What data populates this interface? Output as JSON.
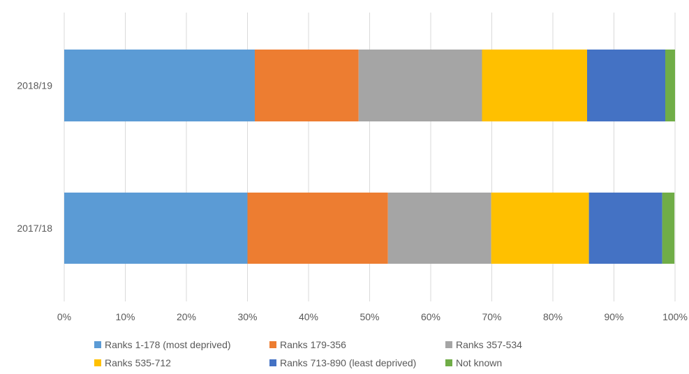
{
  "chart_data": {
    "type": "bar",
    "orientation": "horizontal",
    "stacked": true,
    "percent": true,
    "categories": [
      "2018/19",
      "2017/18"
    ],
    "series": [
      {
        "name": "Ranks 1-178 (most deprived)",
        "color": "#5B9BD5",
        "values": [
          31.2,
          30.0
        ]
      },
      {
        "name": "Ranks 179-356",
        "color": "#ED7D31",
        "values": [
          17.0,
          23.0
        ]
      },
      {
        "name": "Ranks 357-534",
        "color": "#A5A5A5",
        "values": [
          20.2,
          16.9
        ]
      },
      {
        "name": "Ranks 535-712",
        "color": "#FFC000",
        "values": [
          17.2,
          16.0
        ]
      },
      {
        "name": "Ranks 713-890 (least deprived)",
        "color": "#4472C4",
        "values": [
          12.8,
          12.0
        ]
      },
      {
        "name": "Not known",
        "color": "#70AD47",
        "values": [
          1.6,
          2.0
        ]
      }
    ],
    "xlim": [
      0,
      100
    ],
    "xticks": [
      "0%",
      "10%",
      "20%",
      "30%",
      "40%",
      "50%",
      "60%",
      "70%",
      "80%",
      "90%",
      "100%"
    ],
    "grid": true,
    "legend_position": "bottom"
  }
}
